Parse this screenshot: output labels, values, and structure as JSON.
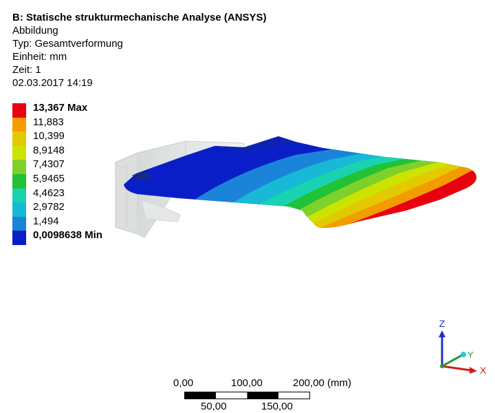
{
  "info": {
    "title": "B: Statische strukturmechanische Analyse (ANSYS)",
    "figure": "Abbildung",
    "type": "Typ: Gesamtverformung",
    "unit": "Einheit: mm",
    "time": "Zeit: 1",
    "date": "02.03.2017 14:19"
  },
  "legend": [
    {
      "label": "13,367 Max",
      "color": "#e8000f",
      "bold": true
    },
    {
      "label": "11,883",
      "color": "#f39c00",
      "bold": false
    },
    {
      "label": "10,399",
      "color": "#e3c900",
      "bold": false
    },
    {
      "label": "8,9148",
      "color": "#cce300",
      "bold": false
    },
    {
      "label": "7,4307",
      "color": "#7ed12a",
      "bold": false
    },
    {
      "label": "5,9465",
      "color": "#22c236",
      "bold": false
    },
    {
      "label": "4,4623",
      "color": "#19d3b0",
      "bold": false
    },
    {
      "label": "2,9782",
      "color": "#17b9d6",
      "bold": false
    },
    {
      "label": "1,494",
      "color": "#1b84d8",
      "bold": false
    },
    {
      "label": "0,0098638 Min",
      "color": "#0a1ec8",
      "bold": true
    }
  ],
  "triad": {
    "z": "Z",
    "y": "Y",
    "x": "X"
  },
  "scalebar": {
    "top_labels": [
      "0,00",
      "100,00",
      "200,00 (mm)"
    ],
    "bottom_labels": [
      "50,00",
      "150,00"
    ]
  }
}
